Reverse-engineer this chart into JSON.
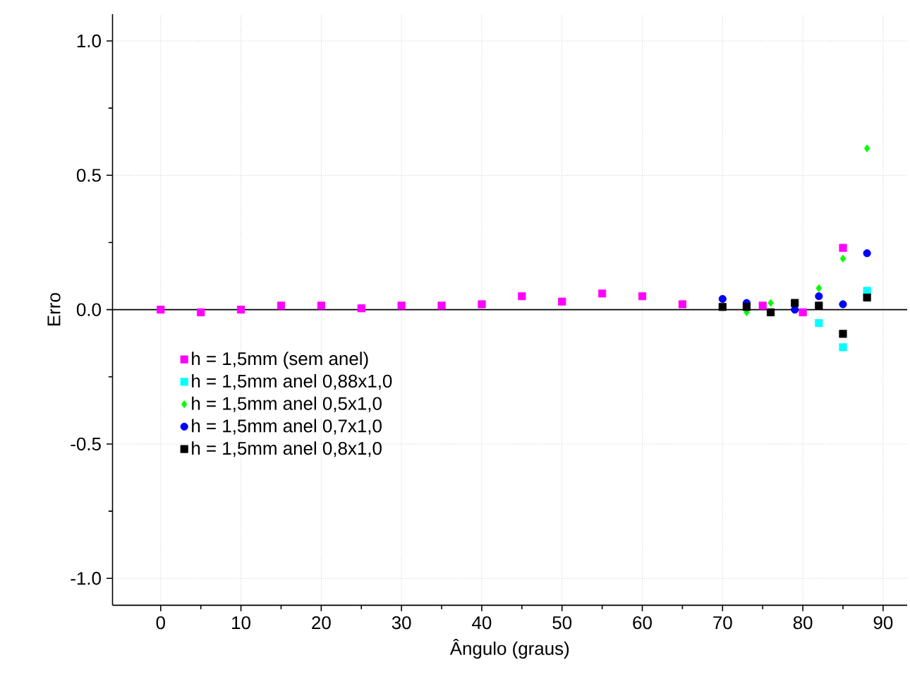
{
  "chart_data": {
    "type": "scatter",
    "xlabel": "Ângulo (graus)",
    "ylabel": "Erro",
    "xlim": [
      -6,
      93
    ],
    "ylim": [
      -1.1,
      1.1
    ],
    "xticks": [
      0,
      10,
      20,
      30,
      40,
      50,
      60,
      70,
      80,
      90
    ],
    "yticks": [
      {
        "value": -1,
        "label": "-1.0"
      },
      {
        "value": -0.5,
        "label": "-0.5"
      },
      {
        "value": 0,
        "label": "0.0"
      },
      {
        "value": 0.5,
        "label": "0.5"
      },
      {
        "value": 1,
        "label": "1.0"
      }
    ],
    "grid": true,
    "legend": "left",
    "ref_lines": [
      {
        "axis": "y",
        "value": 0,
        "color": "#000000"
      }
    ],
    "series": [
      {
        "name": "h = 1,5mm (sem anel)",
        "color": "#ff00ff",
        "marker": "square",
        "x": [
          0,
          5,
          10,
          15,
          20,
          25,
          30,
          35,
          40,
          45,
          50,
          55,
          60,
          65,
          75,
          80,
          85
        ],
        "values": [
          0.0,
          -0.01,
          0.0,
          0.015,
          0.015,
          0.005,
          0.015,
          0.015,
          0.02,
          0.05,
          0.03,
          0.06,
          0.05,
          0.02,
          0.015,
          -0.01,
          0.23
        ]
      },
      {
        "name": "h = 1,5mm  anel 0,88x1,0",
        "color": "#00ffff",
        "marker": "square",
        "x": [
          82,
          85,
          88
        ],
        "values": [
          -0.05,
          -0.14,
          0.07
        ]
      },
      {
        "name": "h = 1,5mm  anel 0,5x1,0",
        "color": "#00ff00",
        "marker": "diamond",
        "x": [
          73,
          76,
          82,
          85,
          88
        ],
        "values": [
          -0.01,
          0.025,
          0.08,
          0.19,
          0.6
        ]
      },
      {
        "name": "h = 1,5mm  anel 0,7x1,0",
        "color": "#0000ff",
        "marker": "circle",
        "x": [
          70,
          73,
          79,
          82,
          85,
          88
        ],
        "values": [
          0.04,
          0.025,
          0.0,
          0.05,
          0.02,
          0.21
        ]
      },
      {
        "name": "h = 1,5mm  anel 0,8x1,0",
        "color": "#000000",
        "marker": "square",
        "x": [
          70,
          73,
          76,
          79,
          82,
          85,
          88
        ],
        "values": [
          0.01,
          0.01,
          -0.01,
          0.025,
          0.015,
          -0.09,
          0.045
        ]
      }
    ]
  }
}
